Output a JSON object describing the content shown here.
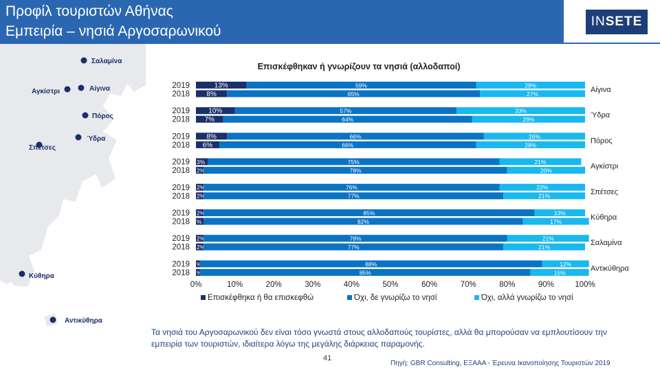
{
  "header": {
    "title_line1": "Προφίλ τουριστών Αθήνας",
    "title_line2": "Εμπειρία – νησιά Αργοσαρωνικού",
    "logo_in": "IN",
    "logo_sete": "SETE"
  },
  "map": {
    "labels": [
      "Σαλαμίνα",
      "Αίγινα",
      "Αγκίστρι",
      "Πόρος",
      "Ύδρα",
      "Σπέτσες",
      "Κύθηρα",
      "Αντικύθηρα"
    ]
  },
  "caption": "Τα νησιά του Αργοσαρωνικού δεν είναι τόσο γνωστά στους αλλοδαπούς τουρίστες, αλλά θα μπορούσαν να εμπλουτίσουν την εμπειρία των τουριστών, ιδιαίτερα λόγω της μεγάλης διάρκειας παραμονής.",
  "page_number": "41",
  "source": "Πηγή: GBR Consulting, ΕΞΑΑΑ - Έρευνα Ικανοποίησης Τουριστών 2019",
  "colors": {
    "header_bg": "#2b67b1",
    "visited": "#1a2f6b",
    "not_known": "#0a73c4",
    "known_not_visited": "#19b8ee",
    "map_land": "#e7e9ec",
    "map_dot": "#1a2f6b"
  },
  "chart_data": {
    "type": "bar",
    "orientation": "horizontal",
    "stacked": true,
    "title": "Επισκέφθηκαν ή γνωρίζουν τα νησιά (αλλοδαποί)",
    "categories": [
      "Αίγινα",
      "Ύδρα",
      "Πόρος",
      "Αγκίστρι",
      "Σπέτσες",
      "Κύθηρα",
      "Σαλαμίνα",
      "Αντικύθηρα"
    ],
    "years": [
      "2019",
      "2018"
    ],
    "series": [
      {
        "name": "Επισκέφθηκα ή θα επισκεφθώ",
        "color": "#1a2f6b",
        "values_2019": [
          13,
          10,
          8,
          3,
          2,
          2,
          2,
          1
        ],
        "values_2018": [
          8,
          7,
          6,
          2,
          2,
          2,
          2,
          1
        ],
        "labels_2019": [
          "13%",
          "10%",
          "8%",
          "3%",
          "2%",
          "2%",
          "2%",
          "%"
        ],
        "labels_2018": [
          "8%",
          "7%",
          "6%",
          "2%",
          "2%",
          "%",
          "2%",
          "%"
        ]
      },
      {
        "name": "Όχι, δε γνωρίζω το νησί",
        "color": "#0a73c4",
        "values_2019": [
          59,
          57,
          66,
          75,
          76,
          85,
          78,
          88
        ],
        "values_2018": [
          65,
          64,
          66,
          78,
          77,
          82,
          77,
          85
        ],
        "labels_2019": [
          "59%",
          "57%",
          "66%",
          "75%",
          "76%",
          "85%",
          "78%",
          "88%"
        ],
        "labels_2018": [
          "65%",
          "64%",
          "66%",
          "78%",
          "77%",
          "82%",
          "77%",
          "85%"
        ]
      },
      {
        "name": "Όχι, αλλά γνωρίζω το νησί",
        "color": "#19b8ee",
        "values_2019": [
          28,
          33,
          26,
          21,
          22,
          13,
          21,
          12
        ],
        "values_2018": [
          27,
          29,
          28,
          20,
          21,
          17,
          21,
          15
        ],
        "labels_2019": [
          "28%",
          "33%",
          "26%",
          "21%",
          "22%",
          "13%",
          "21%",
          "12%"
        ],
        "labels_2018": [
          "27%",
          "29%",
          "28%",
          "20%",
          "21%",
          "17%",
          "21%",
          "15%"
        ]
      }
    ],
    "xlim": [
      0,
      100
    ],
    "x_ticks": [
      "0%",
      "10%",
      "20%",
      "30%",
      "40%",
      "50%",
      "60%",
      "70%",
      "80%",
      "90%",
      "100%"
    ],
    "legend_position": "bottom",
    "grid": false
  }
}
